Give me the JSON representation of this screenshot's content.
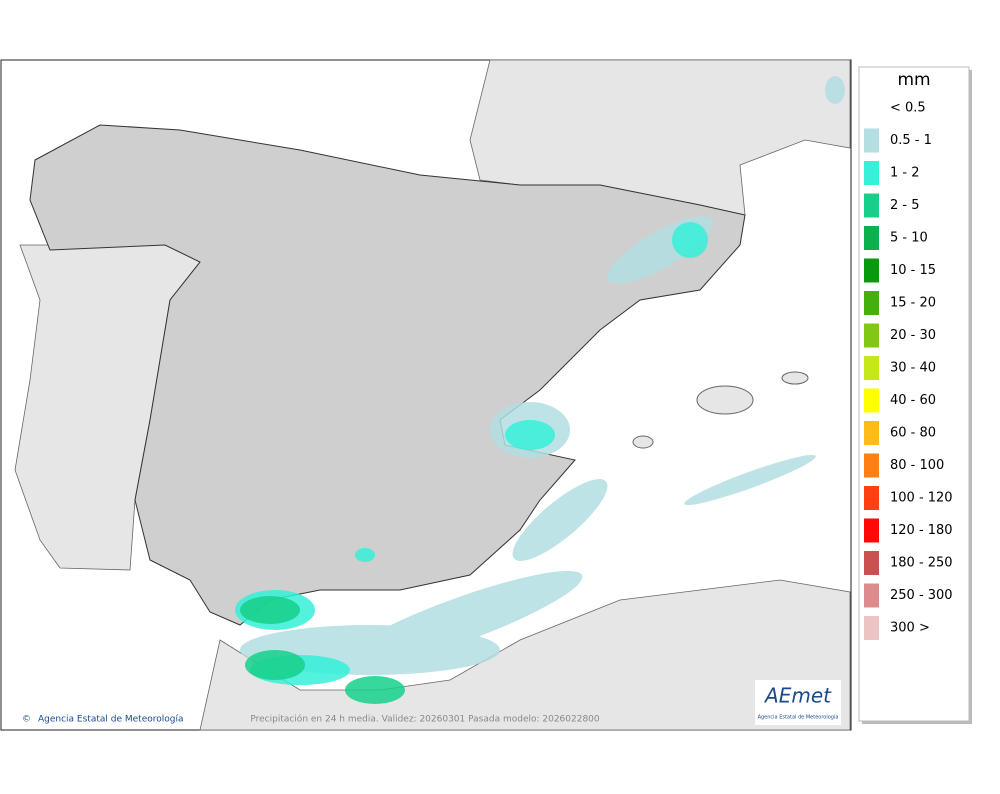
{
  "map": {
    "caption": "Precipitación en 24 h media. Validez: 20260301 Pasada modelo: 2026022800",
    "credit": "Agencia Estatal de Meteorología",
    "logo": {
      "name": "AEmet",
      "subtitle": "Agencia Estatal de Meteorología"
    }
  },
  "legend": {
    "title": "mm",
    "items": [
      {
        "label": "< 0.5"
      },
      {
        "label": "0.5 - 1",
        "color": "#b3dee2"
      },
      {
        "label": "1 - 2",
        "color": "#36f0d8"
      },
      {
        "label": "2 - 5",
        "color": "#16d08a"
      },
      {
        "label": "5 - 10",
        "color": "#0cb04c"
      },
      {
        "label": "10 - 15",
        "color": "#079a0c"
      },
      {
        "label": "15 - 20",
        "color": "#43b00e"
      },
      {
        "label": "20 - 30",
        "color": "#80c812"
      },
      {
        "label": "30 - 40",
        "color": "#c4e81a"
      },
      {
        "label": "40 - 60",
        "color": "#ffff00"
      },
      {
        "label": "60 - 80",
        "color": "#ffbc18"
      },
      {
        "label": "80 - 100",
        "color": "#ff8010"
      },
      {
        "label": "100 - 120",
        "color": "#ff4010"
      },
      {
        "label": "120 - 180",
        "color": "#ff0808"
      },
      {
        "label": "180 - 250",
        "color": "#cc5050"
      },
      {
        "label": "250 - 300",
        "color": "#dc8c8c"
      },
      {
        "label": "300 >",
        "color": "#ecc4c4"
      }
    ]
  }
}
